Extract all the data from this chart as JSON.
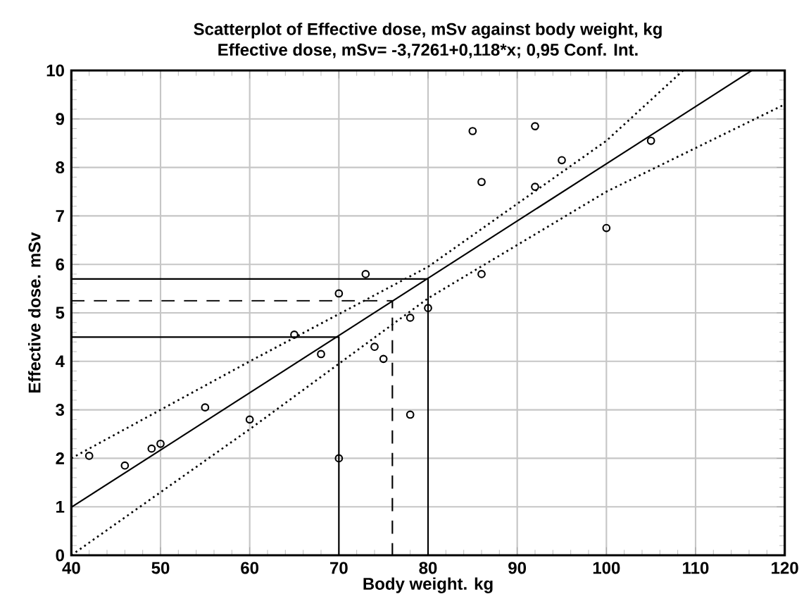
{
  "chart_data": {
    "type": "scatter",
    "title": "Scatterplot of Effective dose, mSv against body weight, kg",
    "subtitle": "Effective dose, mSv= -3,7261+0,118*x; 0,95 Conf. Int.",
    "xlabel": "Body weight. kg",
    "ylabel": "Effective dose. mSv",
    "xlim": [
      40,
      120
    ],
    "ylim": [
      0,
      10
    ],
    "xticks": [
      40,
      50,
      60,
      70,
      80,
      90,
      100,
      110,
      120
    ],
    "yticks": [
      0,
      1,
      2,
      3,
      4,
      5,
      6,
      7,
      8,
      9,
      10
    ],
    "grid": true,
    "series": [
      {
        "color": "#000000",
        "marker": "circle",
        "x": [
          42,
          46,
          49,
          50,
          55,
          60,
          65,
          68,
          70,
          70,
          73,
          74,
          75,
          78,
          78,
          80,
          85,
          86,
          86,
          92,
          92,
          95,
          100,
          105
        ],
        "values": [
          2.05,
          1.85,
          2.2,
          2.3,
          3.05,
          2.8,
          4.55,
          4.15,
          5.4,
          2.0,
          5.8,
          4.3,
          4.05,
          4.9,
          2.9,
          5.1,
          8.75,
          7.7,
          5.8,
          8.85,
          7.6,
          8.15,
          6.75,
          8.55
        ]
      },
      {
        "type": "line",
        "color": "#000000",
        "marker": "none",
        "line_style": "solid",
        "x": [
          40,
          116.3
        ],
        "values": [
          0.99,
          10
        ]
      },
      {
        "type": "line",
        "color": "#000000",
        "marker": "none",
        "line_style": "dotted",
        "x": [
          40,
          60,
          80,
          100,
          108.6
        ],
        "values": [
          2.0,
          4.0,
          5.95,
          8.55,
          10
        ]
      },
      {
        "type": "line",
        "color": "#000000",
        "marker": "none",
        "line_style": "dotted",
        "x": [
          40,
          60,
          80,
          100,
          120
        ],
        "values": [
          0.0,
          2.6,
          5.3,
          7.5,
          9.3
        ]
      },
      {
        "type": "line",
        "color": "#000000",
        "marker": "none",
        "line_style": "solid",
        "x": [
          40,
          70,
          70
        ],
        "values": [
          4.5,
          4.5,
          0
        ]
      },
      {
        "type": "line",
        "color": "#000000",
        "marker": "none",
        "line_style": "solid",
        "x": [
          40,
          80,
          80
        ],
        "values": [
          5.7,
          5.7,
          0
        ]
      },
      {
        "type": "line",
        "color": "#000000",
        "marker": "none",
        "line_style": "dashed",
        "x": [
          40,
          76,
          76
        ],
        "values": [
          5.25,
          5.25,
          0
        ]
      }
    ]
  }
}
